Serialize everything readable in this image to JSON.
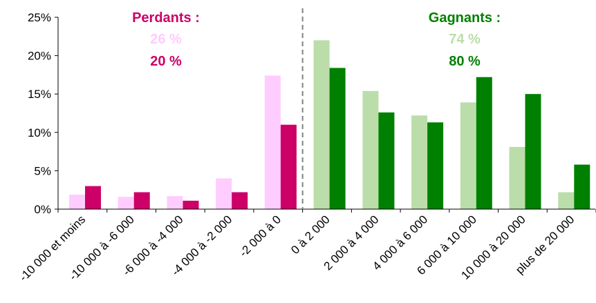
{
  "chart_data": {
    "type": "bar",
    "categories": [
      "-10 000 et moins",
      "-10 000 à -6 000",
      "-6 000 à -4 000",
      "-4 000 à -2 000",
      "-2 000 à 0",
      "0 à 2 000",
      "2 000 à 4 000",
      "4 000 à 6 000",
      "6 000 à 10 000",
      "10 000 à 20 000",
      "plus de 20 000"
    ],
    "series": [
      {
        "values": [
          1.9,
          1.6,
          1.7,
          4.0,
          17.4,
          22.0,
          15.4,
          12.2,
          13.9,
          8.1,
          2.2
        ]
      },
      {
        "values": [
          3.0,
          2.2,
          1.1,
          2.2,
          11.0,
          18.4,
          12.6,
          11.3,
          17.2,
          15.0,
          5.8
        ]
      }
    ],
    "title": "",
    "xlabel": "",
    "ylabel": "",
    "ylim": [
      0,
      25
    ],
    "yticks": [
      "0%",
      "5%",
      "10%",
      "15%",
      "20%",
      "25%"
    ],
    "grid": false,
    "legend": "none",
    "divider_after_category": 4,
    "colors": {
      "losers_light": "#FFCCFF",
      "losers_dark": "#CC0066",
      "winners_light": "#BBDDAA",
      "winners_dark": "#008000",
      "divider": "#808080",
      "axis": "#000000"
    },
    "annotations": {
      "losers": {
        "title": "Perdants :",
        "value1": "26 %",
        "value2": "20 %"
      },
      "winners": {
        "title": "Gagnants :",
        "value1": "74 %",
        "value2": "80 %"
      }
    }
  }
}
